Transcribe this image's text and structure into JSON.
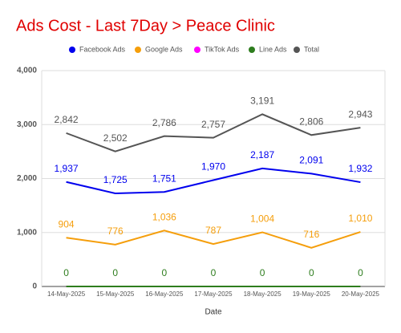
{
  "chart_data": {
    "type": "line",
    "title": "Ads Cost - Last 7Day > Peace Clinic",
    "x_label": "Date",
    "categories": [
      "14-May-2025",
      "15-May-2025",
      "16-May-2025",
      "17-May-2025",
      "18-May-2025",
      "19-May-2025",
      "20-May-2025"
    ],
    "series": [
      {
        "name": "Facebook Ads",
        "color": "#0000ee",
        "values": [
          1937,
          1725,
          1751,
          1970,
          2187,
          2091,
          1932
        ],
        "value_labels": [
          "1,937",
          "1,725",
          "1,751",
          "1,970",
          "2,187",
          "2,091",
          "1,932"
        ]
      },
      {
        "name": "Google Ads",
        "color": "#f59e0b",
        "values": [
          904,
          776,
          1036,
          787,
          1004,
          716,
          1010
        ],
        "value_labels": [
          "904",
          "776",
          "1,036",
          "787",
          "1,004",
          "716",
          "1,010"
        ]
      },
      {
        "name": "TikTok Ads",
        "color": "#ff00ff",
        "values": [
          0,
          0,
          0,
          0,
          0,
          0,
          0
        ]
      },
      {
        "name": "Line Ads",
        "color": "#2e7d1e",
        "values": [
          0,
          0,
          0,
          0,
          0,
          0,
          0
        ],
        "value_labels": [
          "0",
          "0",
          "0",
          "0",
          "0",
          "0",
          "0"
        ]
      },
      {
        "name": "Total",
        "color": "#555555",
        "values": [
          2842,
          2502,
          2786,
          2757,
          3191,
          2806,
          2943
        ],
        "value_labels": [
          "2,842",
          "2,502",
          "2,786",
          "2,757",
          "3,191",
          "2,806",
          "2,943"
        ]
      }
    ],
    "ylim": [
      0,
      4000
    ],
    "yticks": [
      0,
      {
        "value": 1000,
        "label": "1,000"
      },
      {
        "value": 2000,
        "label": "2,000"
      },
      {
        "value": 3000,
        "label": "3,000"
      },
      {
        "value": 4000,
        "label": "4,000"
      }
    ],
    "grid": true,
    "legend": "top"
  }
}
